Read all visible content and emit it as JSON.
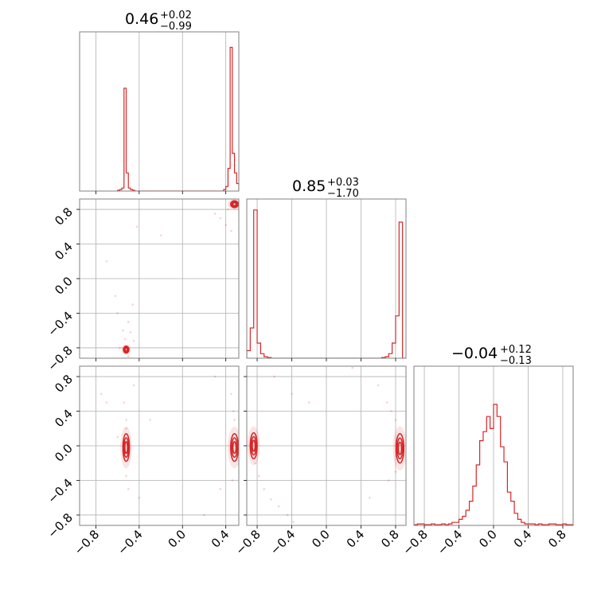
{
  "chart_data": {
    "type": "corner",
    "colors": {
      "line": "#d62728",
      "grid": "#b0b0b0",
      "frame": "#808080"
    },
    "grid": true,
    "parameter_titles": [
      {
        "value": "0.46",
        "plus": "+0.02",
        "minus": "−0.99"
      },
      {
        "value": "0.85",
        "plus": "+0.03",
        "minus": "−1.70"
      },
      {
        "value": "−0.04",
        "plus": "+0.12",
        "minus": "−0.13"
      }
    ],
    "axes": {
      "p1": {
        "range": [
          -0.95,
          0.52
        ],
        "ticks": [
          -0.8,
          -0.4,
          0.0,
          0.4
        ],
        "tick_labels": [
          "−0.8",
          "−0.4",
          "0.0",
          "0.4"
        ]
      },
      "p2": {
        "range": [
          -0.92,
          0.92
        ],
        "ticks": [
          -0.8,
          -0.4,
          0.0,
          0.4,
          0.8
        ],
        "tick_labels": [
          "−0.8",
          "−0.4",
          "0.0",
          "0.4",
          "0.8"
        ]
      },
      "p3": {
        "range": [
          -0.92,
          0.92
        ],
        "ticks": [
          -0.8,
          -0.4,
          0.0,
          0.4,
          0.8
        ],
        "tick_labels": [
          "−0.8",
          "−0.4",
          "0.0",
          "0.4",
          "0.8"
        ]
      }
    },
    "histograms": [
      {
        "name": "p1",
        "edges": [
          -0.6,
          -0.58,
          -0.56,
          -0.54,
          -0.52,
          -0.5,
          -0.48,
          -0.46,
          -0.44,
          0.38,
          0.4,
          0.42,
          0.44,
          0.46,
          0.48,
          0.5,
          0.52
        ],
        "counts": [
          0.005,
          0.01,
          0.02,
          0.68,
          0.12,
          0.02,
          0.01,
          0.005,
          0,
          0.01,
          0.03,
          0.15,
          0.95,
          0.25,
          0.12,
          0.05
        ]
      },
      {
        "name": "p2",
        "edges": [
          -0.92,
          -0.88,
          -0.84,
          -0.8,
          -0.76,
          -0.72,
          -0.68,
          -0.64,
          0.64,
          0.68,
          0.72,
          0.76,
          0.8,
          0.84,
          0.88,
          0.92
        ],
        "counts": [
          0.05,
          0.2,
          0.98,
          0.1,
          0.03,
          0.01,
          0.005,
          0,
          0.005,
          0.01,
          0.03,
          0.1,
          0.28,
          0.9,
          0
        ]
      },
      {
        "name": "p3",
        "edges": [
          -0.92,
          -0.88,
          -0.84,
          -0.8,
          -0.76,
          -0.72,
          -0.68,
          -0.64,
          -0.6,
          -0.56,
          -0.52,
          -0.48,
          -0.44,
          -0.4,
          -0.36,
          -0.32,
          -0.28,
          -0.24,
          -0.2,
          -0.16,
          -0.12,
          -0.08,
          -0.04,
          0,
          0.04,
          0.08,
          0.12,
          0.16,
          0.2,
          0.24,
          0.28,
          0.32,
          0.36,
          0.4,
          0.44,
          0.48,
          0.52,
          0.56,
          0.6,
          0.64,
          0.68,
          0.72,
          0.76,
          0.8,
          0.84,
          0.88,
          0.92
        ],
        "counts": [
          0.005,
          0.01,
          0.01,
          0.005,
          0.005,
          0.01,
          0.005,
          0.005,
          0.01,
          0.005,
          0.01,
          0.02,
          0.02,
          0.04,
          0.06,
          0.1,
          0.16,
          0.26,
          0.4,
          0.56,
          0.62,
          0.72,
          0.64,
          0.8,
          0.72,
          0.52,
          0.42,
          0.22,
          0.16,
          0.08,
          0.04,
          0.02,
          0.01,
          0.01,
          0.01,
          0.005,
          0.01,
          0.005,
          0.005,
          0.01,
          0.01,
          0.005,
          0.005,
          0.01,
          0.005,
          0.005
        ]
      }
    ],
    "contour_panels": [
      {
        "name": "p2-vs-p1",
        "x": "p1",
        "y": "p2",
        "clusters": [
          {
            "x": -0.52,
            "y": -0.82,
            "rx": 0.025,
            "ry": 0.04
          },
          {
            "x": 0.48,
            "y": 0.86,
            "rx": 0.035,
            "ry": 0.04
          }
        ],
        "scatter": [
          [
            -0.5,
            -0.5
          ],
          [
            -0.48,
            -0.62
          ],
          [
            -0.46,
            -0.3
          ],
          [
            -0.55,
            -0.6
          ],
          [
            -0.45,
            -0.72
          ],
          [
            -0.53,
            -0.7
          ],
          [
            -0.62,
            -0.2
          ],
          [
            -0.7,
            0.2
          ],
          [
            -0.42,
            0.6
          ],
          [
            0.35,
            0.7
          ],
          [
            0.4,
            0.62
          ],
          [
            0.3,
            0.75
          ],
          [
            0.45,
            0.55
          ],
          [
            -0.2,
            0.5
          ],
          [
            -0.6,
            -0.4
          ],
          [
            -0.5,
            -0.9
          ],
          [
            0.42,
            0.8
          ],
          [
            -0.58,
            -0.8
          ]
        ]
      },
      {
        "name": "p3-vs-p1",
        "x": "p1",
        "y": "p3",
        "clusters": [
          {
            "x": -0.52,
            "y": -0.02,
            "rx": 0.03,
            "ry": 0.16
          },
          {
            "x": 0.48,
            "y": -0.02,
            "rx": 0.035,
            "ry": 0.16
          }
        ],
        "scatter": [
          [
            -0.52,
            0.3
          ],
          [
            -0.52,
            -0.35
          ],
          [
            -0.54,
            0.5
          ],
          [
            -0.5,
            -0.5
          ],
          [
            -0.7,
            0.5
          ],
          [
            -0.75,
            0.6
          ],
          [
            -0.3,
            0.3
          ],
          [
            0.47,
            0.4
          ],
          [
            0.46,
            -0.4
          ],
          [
            0.45,
            0.6
          ],
          [
            0.3,
            0.8
          ],
          [
            0.35,
            -0.5
          ],
          [
            -0.4,
            -0.6
          ],
          [
            -0.52,
            0.2
          ],
          [
            0.48,
            0.3
          ],
          [
            -0.45,
            0.7
          ],
          [
            0.2,
            -0.8
          ],
          [
            -0.6,
            0.1
          ]
        ]
      },
      {
        "name": "p3-vs-p2",
        "x": "p2",
        "y": "p3",
        "clusters": [
          {
            "x": -0.84,
            "y": 0.0,
            "rx": 0.04,
            "ry": 0.15
          },
          {
            "x": 0.85,
            "y": -0.03,
            "rx": 0.045,
            "ry": 0.17
          }
        ],
        "scatter": [
          [
            -0.82,
            -0.2
          ],
          [
            -0.78,
            -0.35
          ],
          [
            -0.72,
            -0.5
          ],
          [
            -0.64,
            -0.62
          ],
          [
            -0.55,
            -0.7
          ],
          [
            -0.45,
            -0.8
          ],
          [
            -0.38,
            -0.88
          ],
          [
            0.8,
            0.3
          ],
          [
            0.75,
            0.4
          ],
          [
            0.7,
            0.5
          ],
          [
            0.8,
            -0.3
          ],
          [
            0.72,
            -0.4
          ],
          [
            0.6,
            0.7
          ],
          [
            -0.4,
            0.6
          ],
          [
            -0.2,
            0.5
          ],
          [
            0.3,
            0.9
          ],
          [
            -0.6,
            0.8
          ],
          [
            0.5,
            -0.6
          ]
        ]
      }
    ]
  }
}
